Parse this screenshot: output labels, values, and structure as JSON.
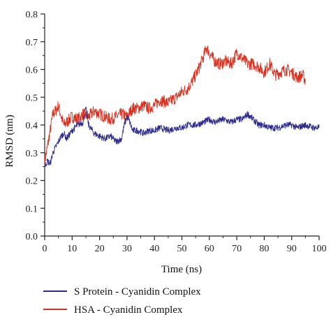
{
  "chart_data": {
    "type": "line",
    "xlabel": "Time (ns)",
    "ylabel": "RMSD (nm)",
    "xlim": [
      0,
      100
    ],
    "ylim": [
      0,
      0.8
    ],
    "xticks": [
      0,
      10,
      20,
      30,
      40,
      50,
      60,
      70,
      80,
      90,
      100
    ],
    "xtick_labels": [
      "0",
      "10",
      "20",
      "30",
      "40",
      "50",
      "60",
      "70",
      "80",
      "90",
      "100"
    ],
    "yticks": [
      0,
      0.1,
      0.2,
      0.3,
      0.4,
      0.5,
      0.6,
      0.7,
      0.8
    ],
    "ytick_labels": [
      "0.0",
      "0.1",
      "0.2",
      "0.3",
      "0.4",
      "0.5",
      "0.6",
      "0.7",
      "0.8"
    ],
    "grid": false,
    "legend_position": "bottom",
    "series": [
      {
        "name": "S Protein - Cyanidin Complex",
        "color": "#2b2a8f",
        "x": [
          0,
          1,
          2,
          3,
          4,
          5,
          6,
          7,
          8,
          10,
          12,
          14,
          15,
          16,
          18,
          20,
          22,
          24,
          26,
          28,
          29,
          30,
          31,
          32,
          34,
          36,
          38,
          40,
          42,
          45,
          48,
          50,
          52,
          55,
          58,
          60,
          62,
          65,
          68,
          70,
          72,
          74,
          75,
          76,
          78,
          80,
          82,
          85,
          88,
          90,
          92,
          95,
          98,
          100
        ],
        "y": [
          0.25,
          0.27,
          0.26,
          0.3,
          0.32,
          0.34,
          0.36,
          0.37,
          0.35,
          0.38,
          0.4,
          0.41,
          0.46,
          0.4,
          0.37,
          0.36,
          0.35,
          0.36,
          0.34,
          0.35,
          0.4,
          0.43,
          0.41,
          0.38,
          0.38,
          0.37,
          0.38,
          0.38,
          0.39,
          0.38,
          0.39,
          0.39,
          0.4,
          0.4,
          0.41,
          0.42,
          0.41,
          0.42,
          0.41,
          0.42,
          0.42,
          0.44,
          0.43,
          0.42,
          0.4,
          0.4,
          0.39,
          0.39,
          0.4,
          0.4,
          0.39,
          0.4,
          0.39,
          0.39
        ]
      },
      {
        "name": "HSA - Cyanidin Complex",
        "color": "#d9301f",
        "x": [
          0,
          1,
          2,
          3,
          4,
          5,
          6,
          7,
          8,
          10,
          12,
          14,
          16,
          18,
          20,
          22,
          24,
          26,
          28,
          30,
          32,
          34,
          36,
          38,
          40,
          42,
          45,
          48,
          50,
          52,
          54,
          56,
          58,
          59,
          60,
          62,
          64,
          66,
          68,
          70,
          72,
          74,
          76,
          78,
          80,
          82,
          84,
          86,
          88,
          90,
          92,
          94,
          95
        ],
        "y": [
          0.27,
          0.32,
          0.38,
          0.44,
          0.45,
          0.47,
          0.43,
          0.4,
          0.41,
          0.43,
          0.42,
          0.44,
          0.43,
          0.45,
          0.44,
          0.43,
          0.42,
          0.43,
          0.44,
          0.43,
          0.46,
          0.46,
          0.47,
          0.46,
          0.47,
          0.49,
          0.48,
          0.5,
          0.52,
          0.53,
          0.56,
          0.6,
          0.65,
          0.68,
          0.66,
          0.63,
          0.62,
          0.63,
          0.62,
          0.66,
          0.64,
          0.62,
          0.62,
          0.61,
          0.59,
          0.62,
          0.58,
          0.59,
          0.6,
          0.59,
          0.57,
          0.58,
          0.56
        ]
      }
    ]
  }
}
